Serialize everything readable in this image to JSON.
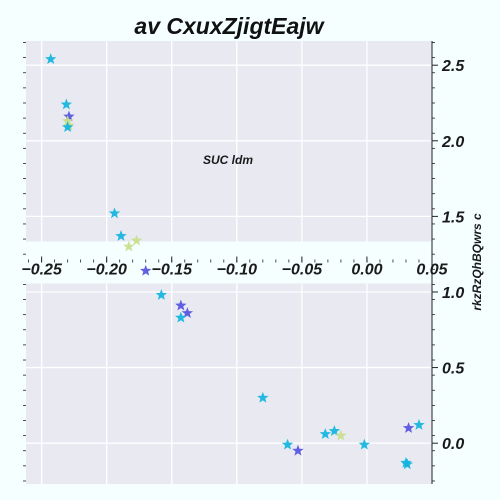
{
  "chart_data": {
    "type": "scatter",
    "title": "av  CxuxZjigtEajw",
    "xlabel": "SUC ldm",
    "ylabel": "rkzRzQhBQwrs c",
    "xlim": [
      -0.262,
      0.05
    ],
    "ylim": [
      -0.27,
      2.66
    ],
    "x_ticks": [
      -0.25,
      -0.2,
      -0.15,
      -0.1,
      -0.05,
      0.0,
      0.05
    ],
    "x_tick_labels": [
      "−0.25",
      "−0.20",
      "−0.15",
      "−0.10",
      "−0.05",
      "0.00",
      "0.05"
    ],
    "y_ticks": [
      0.0,
      0.5,
      1.0,
      1.5,
      2.0,
      2.5
    ],
    "y_tick_labels": [
      "0.0",
      "0.5",
      "1.0",
      "1.5",
      "2.0",
      "2.5"
    ],
    "x_axis_position": "middle",
    "y_axis_position": "right",
    "grid": true,
    "marker": "star",
    "colors": {
      "background": "#f5ffff",
      "plot_area": "#e9e9f2",
      "grid": "#ffffff",
      "cyan": "#0fb4dd",
      "violet": "#5451e0",
      "lime": "#c9de8c"
    },
    "points": [
      {
        "x": -0.243,
        "y": 2.54,
        "color": "#0fb4dd"
      },
      {
        "x": -0.231,
        "y": 2.24,
        "color": "#0fb4dd"
      },
      {
        "x": -0.229,
        "y": 2.16,
        "color": "#5451e0"
      },
      {
        "x": -0.23,
        "y": 2.13,
        "color": "#c9de8c"
      },
      {
        "x": -0.229,
        "y": 2.1,
        "color": "#c9de8c"
      },
      {
        "x": -0.23,
        "y": 2.09,
        "color": "#0fb4dd"
      },
      {
        "x": -0.194,
        "y": 1.52,
        "color": "#0fb4dd"
      },
      {
        "x": -0.189,
        "y": 1.37,
        "color": "#0fb4dd"
      },
      {
        "x": -0.177,
        "y": 1.34,
        "color": "#c9de8c"
      },
      {
        "x": -0.183,
        "y": 1.3,
        "color": "#c9de8c"
      },
      {
        "x": -0.17,
        "y": 1.14,
        "color": "#5451e0"
      },
      {
        "x": -0.158,
        "y": 0.98,
        "color": "#0fb4dd"
      },
      {
        "x": -0.143,
        "y": 0.91,
        "color": "#5451e0"
      },
      {
        "x": -0.138,
        "y": 0.86,
        "color": "#5451e0"
      },
      {
        "x": -0.143,
        "y": 0.83,
        "color": "#0fb4dd"
      },
      {
        "x": -0.08,
        "y": 0.3,
        "color": "#0fb4dd"
      },
      {
        "x": -0.061,
        "y": -0.01,
        "color": "#0fb4dd"
      },
      {
        "x": -0.053,
        "y": -0.05,
        "color": "#5451e0"
      },
      {
        "x": -0.032,
        "y": 0.06,
        "color": "#0fb4dd"
      },
      {
        "x": -0.025,
        "y": 0.08,
        "color": "#0fb4dd"
      },
      {
        "x": -0.02,
        "y": 0.05,
        "color": "#c9de8c"
      },
      {
        "x": -0.002,
        "y": -0.01,
        "color": "#0fb4dd"
      },
      {
        "x": 0.032,
        "y": 0.1,
        "color": "#5451e0"
      },
      {
        "x": 0.04,
        "y": 0.12,
        "color": "#0fb4dd"
      },
      {
        "x": 0.03,
        "y": -0.13,
        "color": "#0fb4dd"
      },
      {
        "x": 0.031,
        "y": -0.14,
        "color": "#0fb4dd"
      }
    ]
  }
}
